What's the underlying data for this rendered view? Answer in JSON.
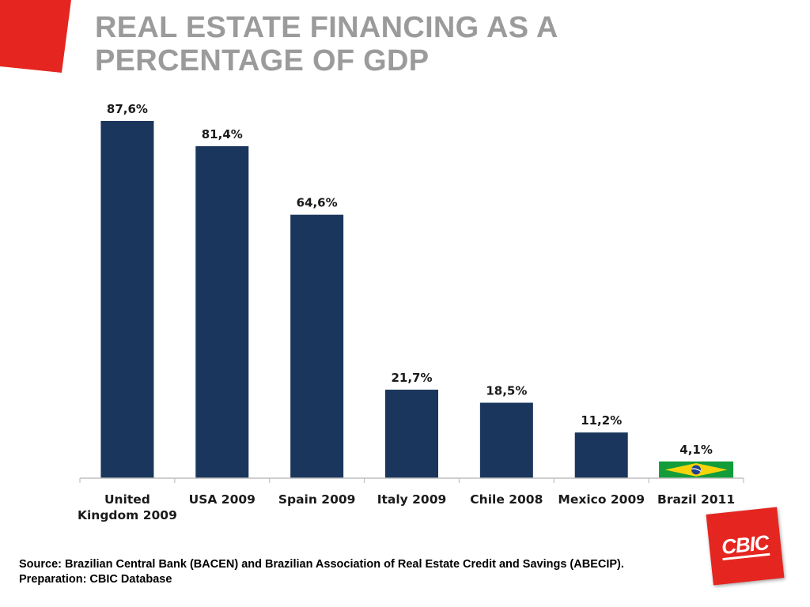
{
  "slide": {
    "title_line1": "REAL ESTATE FINANCING AS A",
    "title_line2": "PERCENTAGE OF GDP",
    "source_line1": "Source: Brazilian Central Bank (BACEN) and Brazilian Association of Real Estate Credit and Savings (ABECIP).",
    "source_line2": "Preparation: CBIC Database",
    "logo_text": "CBIC"
  },
  "colors": {
    "bar": "#1b365d",
    "accent_red": "#e52620",
    "title_gray": "#9b9b9b",
    "axis_gray": "#bfbfbf",
    "flag_green": "#129c3a",
    "flag_yellow": "#f6d40c",
    "flag_blue": "#1f3f8f"
  },
  "chart_data": {
    "type": "bar",
    "title": "",
    "xlabel": "",
    "ylabel": "",
    "ylim": [
      0,
      90
    ],
    "grid": false,
    "categories": [
      [
        "United",
        "Kingdom 2009"
      ],
      [
        "USA 2009"
      ],
      [
        "Spain 2009"
      ],
      [
        "Italy 2009"
      ],
      [
        "Chile 2008"
      ],
      [
        "Mexico 2009"
      ],
      [
        "Brazil 2011"
      ]
    ],
    "values": [
      87.6,
      81.4,
      64.6,
      21.7,
      18.5,
      11.2,
      4.1
    ],
    "data_labels": [
      "87,6%",
      "81,4%",
      "64,6%",
      "21,7%",
      "18,5%",
      "11,2%",
      "4,1%"
    ],
    "highlight": {
      "category": "Brazil 2011",
      "fill": "brazil-flag"
    }
  }
}
